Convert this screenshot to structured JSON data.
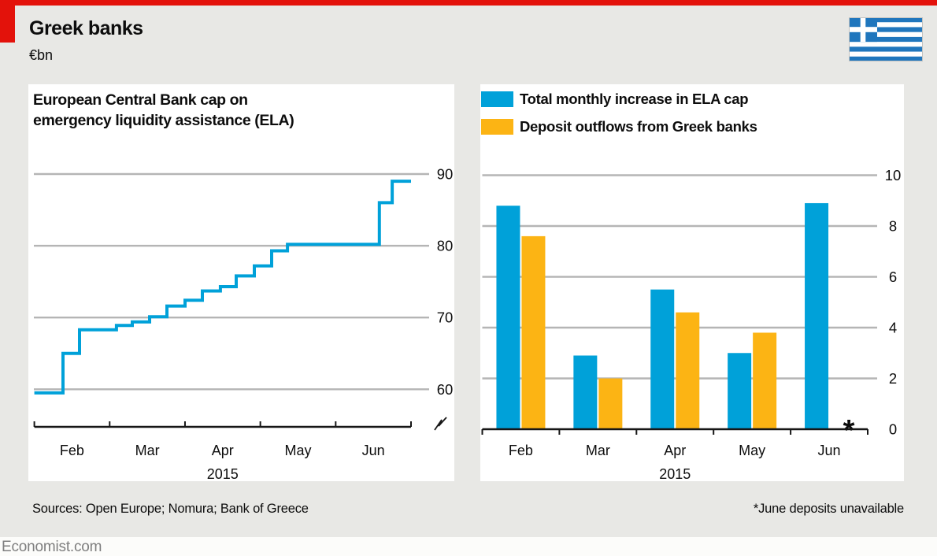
{
  "header": {
    "title": "Greek banks",
    "subtitle": "€bn"
  },
  "flag": {
    "name": "flag-of-greece",
    "blue": "#1f76bd",
    "white": "#ffffff"
  },
  "colors": {
    "accent_red": "#e3120b",
    "chart_blue": "#00a1d9",
    "chart_yellow": "#fcb414",
    "asterisk_orange": "#f89729",
    "background": "#e8e8e5",
    "panel": "#ffffff",
    "gridline": "#b5b5b5",
    "axis": "#161616",
    "text": "#0d0d0d",
    "footer_text": "#7f7f7f"
  },
  "chart_data": [
    {
      "type": "line",
      "style": "step",
      "title": "European Central Bank cap on emergency liquidity assistance (ELA)",
      "title_lines": [
        "European Central Bank cap on",
        "emergency liquidity assistance (ELA)"
      ],
      "units": "€bn",
      "x_axis": {
        "months": [
          "Feb",
          "Mar",
          "Apr",
          "May",
          "Jun"
        ],
        "year_label": "2015",
        "ticks": "month boundaries Feb 1 – Jul 1"
      },
      "y_axis": {
        "ticks": [
          60,
          70,
          80,
          90
        ],
        "range_shown": [
          55.5,
          92.5
        ],
        "broken_at_zero": true,
        "grid": true,
        "labels_side": "right"
      },
      "series": [
        {
          "name": "ECB ELA cap",
          "color": "#00a1d9",
          "points_x_fraction_of_axis": [
            {
              "x": 0.0,
              "v": 59.5
            },
            {
              "x": 0.076,
              "v": 65.0
            },
            {
              "x": 0.12,
              "v": 68.3
            },
            {
              "x": 0.218,
              "v": 68.9
            },
            {
              "x": 0.26,
              "v": 69.4
            },
            {
              "x": 0.306,
              "v": 70.1
            },
            {
              "x": 0.352,
              "v": 71.6
            },
            {
              "x": 0.4,
              "v": 72.4
            },
            {
              "x": 0.446,
              "v": 73.7
            },
            {
              "x": 0.494,
              "v": 74.3
            },
            {
              "x": 0.536,
              "v": 75.8
            },
            {
              "x": 0.584,
              "v": 77.2
            },
            {
              "x": 0.63,
              "v": 79.3
            },
            {
              "x": 0.672,
              "v": 80.2
            },
            {
              "x": 0.916,
              "v": 86.0
            },
            {
              "x": 0.95,
              "v": 89.0
            }
          ]
        }
      ]
    },
    {
      "type": "bar",
      "categories": [
        "Feb",
        "Mar",
        "Apr",
        "May",
        "Jun"
      ],
      "x_axis": {
        "year_label": "2015"
      },
      "y_axis": {
        "ticks": [
          0,
          2,
          4,
          6,
          8,
          10
        ],
        "range": [
          0,
          10.5
        ],
        "grid": true,
        "labels_side": "right"
      },
      "series": [
        {
          "name": "Total monthly increase in ELA cap",
          "color": "#00a1d9",
          "values": [
            8.8,
            2.9,
            5.5,
            3.0,
            8.9
          ]
        },
        {
          "name": "Deposit outflows from Greek banks",
          "color": "#fcb414",
          "values": [
            7.6,
            2.0,
            4.6,
            3.8,
            null
          ]
        }
      ],
      "missing_marker": {
        "symbol": "*",
        "category": "Jun",
        "series": "Deposit outflows from Greek banks",
        "color": "#f89729"
      },
      "legend_position": "top-left"
    }
  ],
  "footer": {
    "sources": "Sources: Open Europe; Nomura; Bank of Greece",
    "footnote": "*June deposits unavailable",
    "site": "Economist.com"
  }
}
